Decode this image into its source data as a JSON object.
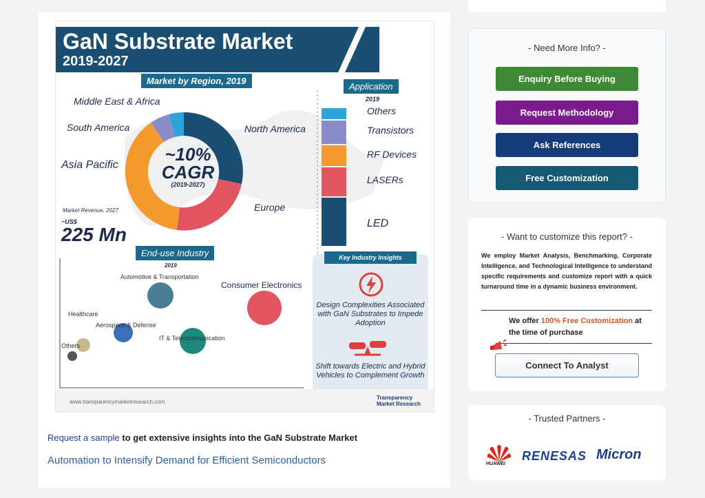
{
  "infographic": {
    "title": "GaN Substrate Market",
    "years": "2019-2027",
    "region_header": "Market by Region, 2019",
    "regions": [
      "Middle East & Africa",
      "South America",
      "Asia Pacific",
      "North America",
      "Europe"
    ],
    "cagr_value": "~10%",
    "cagr_label": "CAGR",
    "cagr_period": "(2019-2027)",
    "revenue_label": "Market Revenue, 2027",
    "revenue_currency": "~US$",
    "revenue_value": "225 Mn",
    "application_header": "Application",
    "application_year": "2019",
    "applications": [
      "Others",
      "Transistors",
      "RF Devices",
      "LASERs",
      "LED"
    ],
    "enduse_header": "End-use Industry",
    "enduse_year": "2019",
    "enduse": [
      "Automotive & Transportation",
      "Consumer Electronics",
      "Healthcare",
      "Aerospace & Defense",
      "IT & Telecommunication",
      "Others"
    ],
    "insights_header": "Key Industry Insights",
    "insight_1": "Design Complexities Associated with GaN Substrates to Impede Adoption",
    "insight_2": "Shift towards Electric and Hybrid Vehicles to Complement Growth",
    "website": "www.transparencymarketresearch.com",
    "brand": "Transparency Market Research",
    "colors": {
      "navy": "#1b4f72",
      "orange": "#f39a2e",
      "red": "#e05560",
      "purple": "#8a8cc8",
      "lightblue": "#2fa3dc"
    }
  },
  "content": {
    "sample_link": "Request a sample",
    "sample_text": " to get extensive insights into the GaN Substrate Market",
    "subheading": "Automation to Intensify Demand for Efficient Semiconductors"
  },
  "info_card": {
    "title": "- Need More Info? -",
    "buttons": [
      {
        "label": "Enquiry Before Buying",
        "color": "#3e8a34"
      },
      {
        "label": "Request Methodology",
        "color": "#7b1a8c"
      },
      {
        "label": "Ask References",
        "color": "#153b7a"
      },
      {
        "label": "Free Customization",
        "color": "#155a73"
      }
    ]
  },
  "customize_card": {
    "title": "- Want to customize this report? -",
    "body": "We employ Market Analysis, Benchmarking, Corporate Intelligence, and Technological Intelligence to understand specific requirements and customize report with a quick turnaround time in a dynamic business environment.",
    "offer_prefix": "We offer ",
    "offer_highlight": "100% Free Customization",
    "offer_suffix": " at the time of purchase",
    "cta": "Connect To Analyst",
    "icon": "megaphone-icon"
  },
  "partners_card": {
    "title": "- Trusted Partners -",
    "partners": [
      "HUAWEI",
      "RENESAS",
      "Micron"
    ]
  }
}
